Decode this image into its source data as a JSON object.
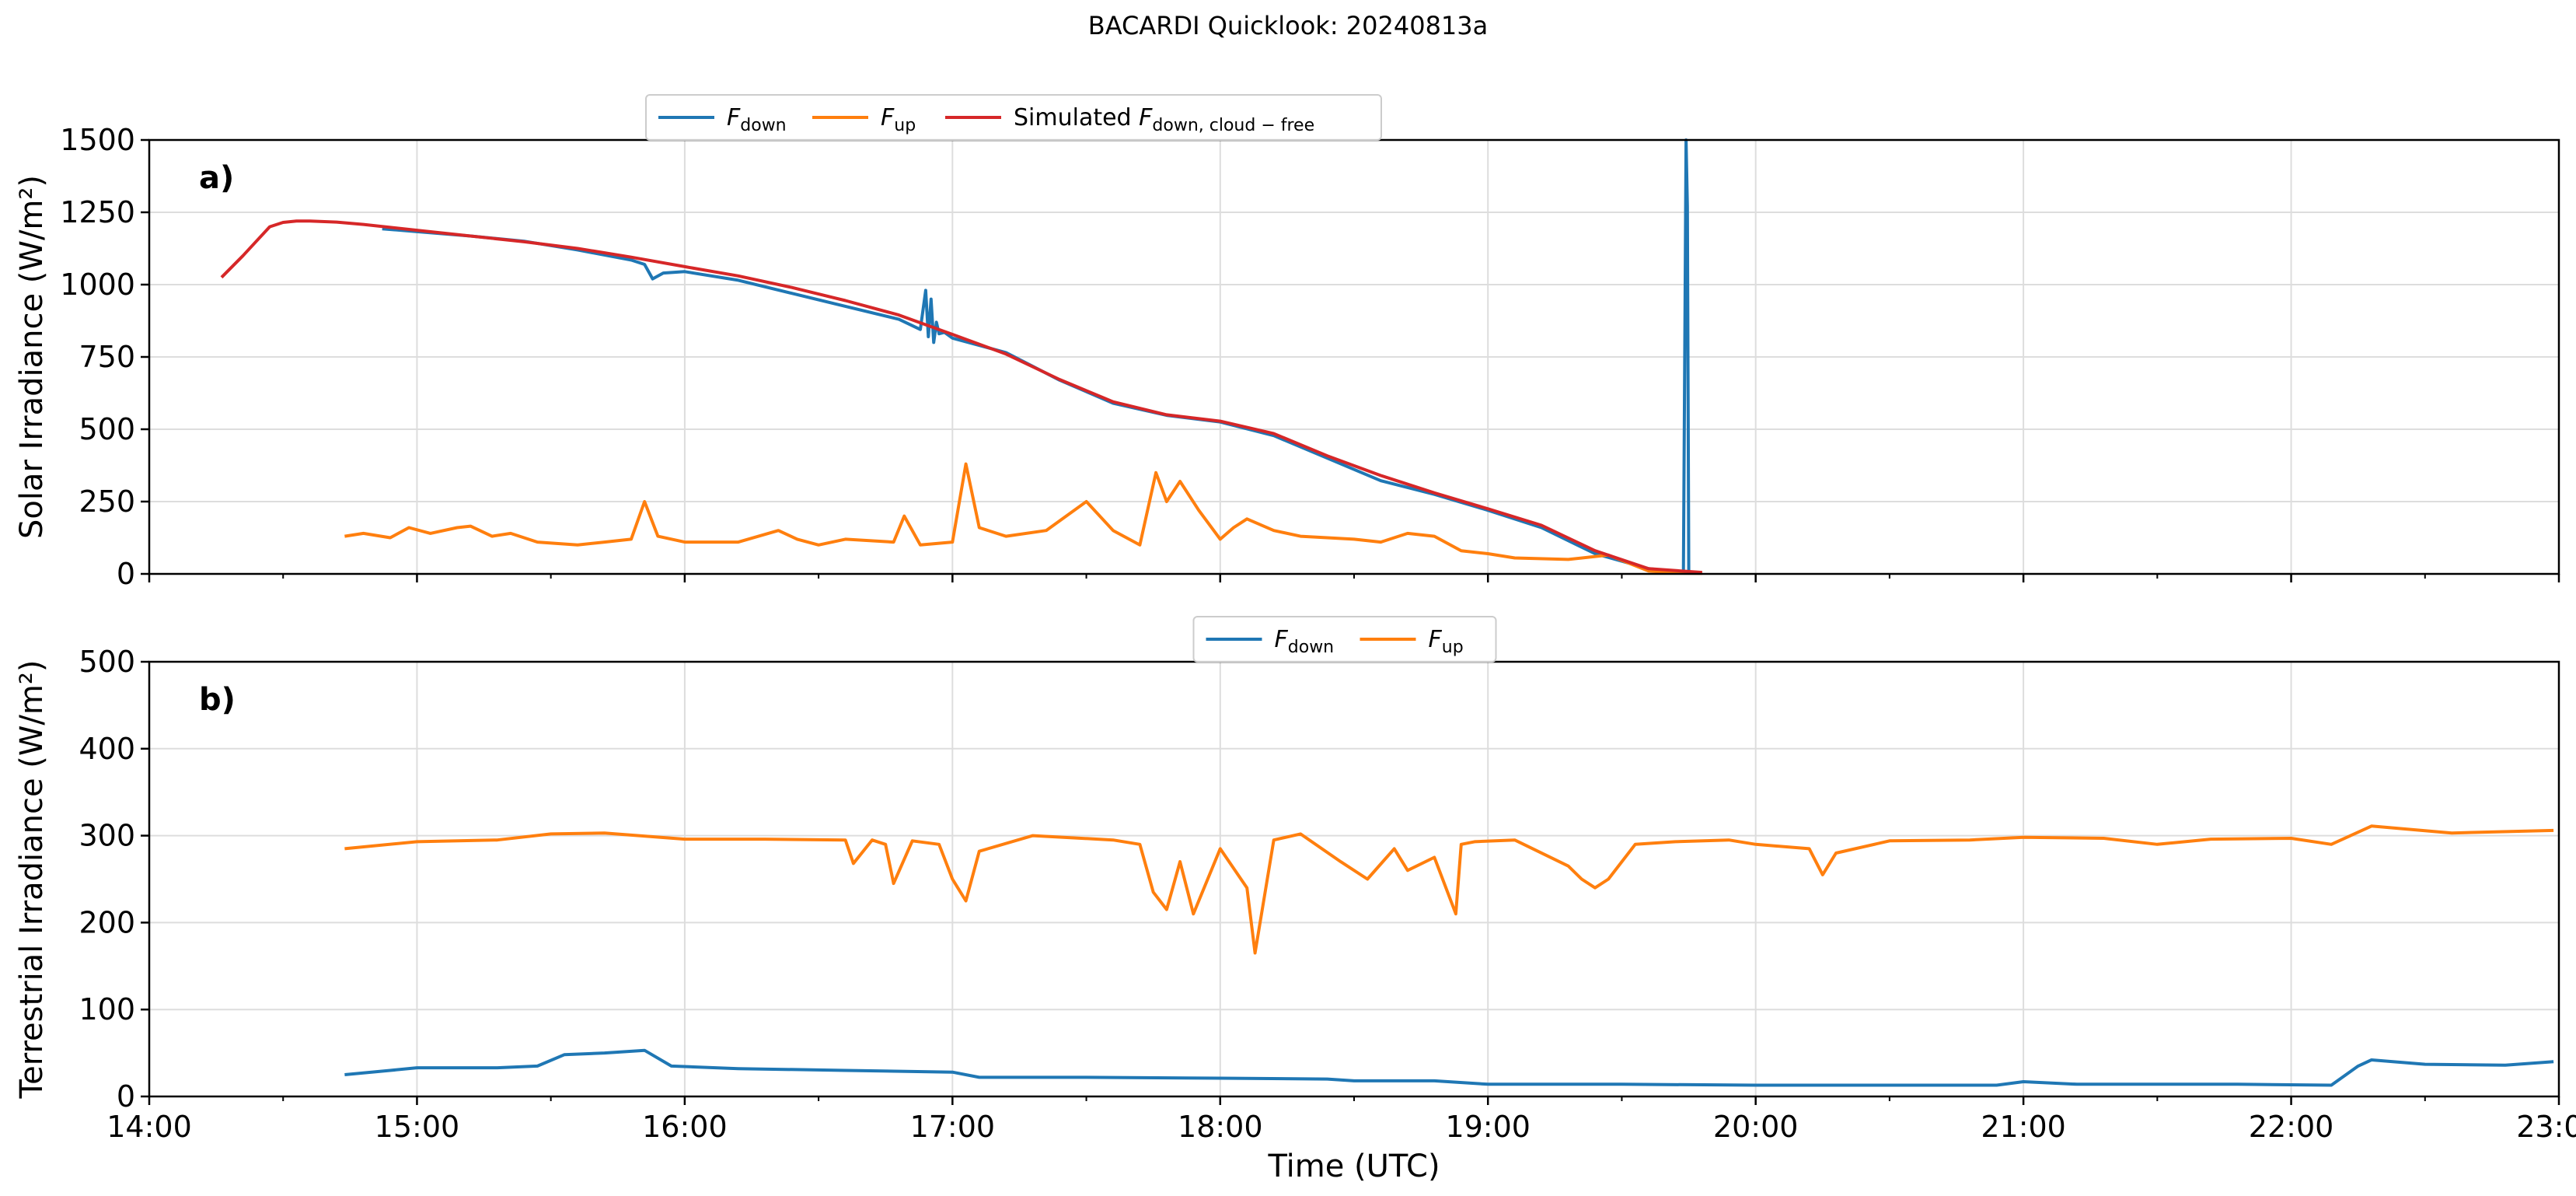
{
  "figure": {
    "title": "BACARDI Quicklook: 20240813a"
  },
  "colors": {
    "blue": "#1f77b4",
    "orange": "#ff7f0e",
    "red": "#d62728",
    "grid": "#dddddd"
  },
  "chart_data": [
    {
      "type": "line",
      "panel_label": "a)",
      "ylabel": "Solar Irradiance (W/m²)",
      "xlabel": "",
      "xlim": [
        14.0,
        23.0
      ],
      "ylim": [
        0,
        1500
      ],
      "yticks": [
        0,
        250,
        500,
        750,
        1000,
        1250,
        1500
      ],
      "grid": true,
      "legend": {
        "placement": "top-center",
        "columns": 3
      },
      "series": [
        {
          "name": "F_down",
          "legend_main": "F",
          "legend_sub": "down",
          "color": "#1f77b4",
          "x": [
            14.87,
            15.0,
            15.2,
            15.4,
            15.6,
            15.8,
            15.85,
            15.88,
            15.92,
            16.0,
            16.2,
            16.4,
            16.6,
            16.8,
            16.88,
            16.9,
            16.91,
            16.92,
            16.93,
            16.94,
            16.95,
            16.97,
            17.0,
            17.2,
            17.4,
            17.6,
            17.8,
            18.0,
            18.2,
            18.4,
            18.6,
            18.8,
            19.0,
            19.2,
            19.4,
            19.6,
            19.73,
            19.74,
            19.745,
            19.75
          ],
          "y": [
            1193,
            1183,
            1168,
            1150,
            1120,
            1085,
            1070,
            1020,
            1040,
            1045,
            1015,
            970,
            925,
            880,
            845,
            980,
            820,
            950,
            800,
            870,
            830,
            835,
            815,
            765,
            670,
            590,
            548,
            525,
            478,
            400,
            322,
            275,
            220,
            160,
            70,
            18,
            5,
            1500,
            1270,
            0
          ]
        },
        {
          "name": "F_up",
          "legend_main": "F",
          "legend_sub": "up",
          "color": "#ff7f0e",
          "x": [
            14.73,
            14.8,
            14.9,
            14.97,
            15.05,
            15.15,
            15.2,
            15.28,
            15.35,
            15.45,
            15.6,
            15.7,
            15.8,
            15.85,
            15.9,
            16.0,
            16.2,
            16.35,
            16.42,
            16.5,
            16.6,
            16.78,
            16.82,
            16.88,
            17.0,
            17.05,
            17.1,
            17.2,
            17.35,
            17.5,
            17.6,
            17.7,
            17.76,
            17.8,
            17.85,
            17.92,
            18.0,
            18.05,
            18.1,
            18.2,
            18.3,
            18.5,
            18.6,
            18.7,
            18.8,
            18.9,
            19.0,
            19.1,
            19.3,
            19.45,
            19.6,
            19.7,
            19.8
          ],
          "y": [
            130,
            140,
            125,
            160,
            140,
            160,
            165,
            130,
            140,
            110,
            100,
            110,
            120,
            250,
            130,
            110,
            110,
            150,
            120,
            100,
            120,
            110,
            200,
            100,
            110,
            380,
            160,
            130,
            150,
            250,
            150,
            100,
            350,
            250,
            320,
            220,
            120,
            160,
            190,
            150,
            130,
            120,
            110,
            140,
            130,
            80,
            70,
            55,
            50,
            65,
            10,
            3,
            2
          ]
        },
        {
          "name": "Simulated F_down,cloud-free",
          "legend_prefix": "Simulated ",
          "legend_main": "F",
          "legend_sub": "down, cloud − free",
          "color": "#d62728",
          "x": [
            14.27,
            14.35,
            14.4,
            14.45,
            14.5,
            14.55,
            14.6,
            14.7,
            14.8,
            15.0,
            15.2,
            15.4,
            15.6,
            15.8,
            16.0,
            16.2,
            16.4,
            16.6,
            16.8,
            17.0,
            17.2,
            17.4,
            17.6,
            17.8,
            18.0,
            18.2,
            18.4,
            18.6,
            18.8,
            19.0,
            19.2,
            19.4,
            19.6,
            19.8
          ],
          "y": [
            1025,
            1100,
            1150,
            1200,
            1215,
            1220,
            1220,
            1216,
            1208,
            1188,
            1168,
            1148,
            1125,
            1095,
            1062,
            1030,
            990,
            945,
            895,
            828,
            760,
            672,
            595,
            550,
            528,
            485,
            408,
            340,
            280,
            225,
            168,
            80,
            18,
            5
          ]
        }
      ]
    },
    {
      "type": "line",
      "panel_label": "b)",
      "ylabel": "Terrestrial Irradiance (W/m²)",
      "xlabel": "Time (UTC)",
      "xlim": [
        14.0,
        23.0
      ],
      "ylim": [
        0,
        500
      ],
      "yticks": [
        0,
        100,
        200,
        300,
        400,
        500
      ],
      "xticks": [
        14,
        15,
        16,
        17,
        18,
        19,
        20,
        21,
        22,
        23
      ],
      "xtick_labels": [
        "14:00",
        "15:00",
        "16:00",
        "17:00",
        "18:00",
        "19:00",
        "20:00",
        "21:00",
        "22:00",
        "23:00"
      ],
      "grid": true,
      "legend": {
        "placement": "top-center",
        "columns": 2
      },
      "series": [
        {
          "name": "F_down",
          "legend_main": "F",
          "legend_sub": "down",
          "color": "#1f77b4",
          "x": [
            14.73,
            14.9,
            15.0,
            15.3,
            15.45,
            15.55,
            15.7,
            15.85,
            15.95,
            16.2,
            16.6,
            17.0,
            17.1,
            17.5,
            18.0,
            18.4,
            18.5,
            18.8,
            19.0,
            19.5,
            20.0,
            20.5,
            20.9,
            21.0,
            21.2,
            21.8,
            22.15,
            22.25,
            22.3,
            22.5,
            22.8,
            22.98
          ],
          "y": [
            25,
            30,
            33,
            33,
            35,
            48,
            50,
            53,
            35,
            32,
            30,
            28,
            22,
            22,
            21,
            20,
            18,
            18,
            14,
            14,
            13,
            13,
            13,
            17,
            14,
            14,
            13,
            35,
            42,
            37,
            36,
            40
          ]
        },
        {
          "name": "F_up",
          "legend_main": "F",
          "legend_sub": "up",
          "color": "#ff7f0e",
          "x": [
            14.73,
            15.0,
            15.3,
            15.5,
            15.7,
            16.0,
            16.3,
            16.6,
            16.63,
            16.7,
            16.75,
            16.78,
            16.85,
            16.95,
            17.0,
            17.05,
            17.1,
            17.3,
            17.6,
            17.7,
            17.75,
            17.8,
            17.85,
            17.9,
            18.0,
            18.1,
            18.13,
            18.2,
            18.3,
            18.45,
            18.55,
            18.65,
            18.7,
            18.8,
            18.88,
            18.9,
            18.95,
            19.1,
            19.3,
            19.35,
            19.4,
            19.45,
            19.55,
            19.7,
            19.9,
            20.0,
            20.2,
            20.25,
            20.3,
            20.5,
            20.8,
            21.0,
            21.3,
            21.5,
            21.7,
            22.0,
            22.15,
            22.3,
            22.6,
            22.98
          ],
          "y": [
            285,
            293,
            295,
            302,
            303,
            296,
            296,
            295,
            268,
            295,
            290,
            245,
            294,
            290,
            250,
            225,
            282,
            300,
            295,
            290,
            235,
            215,
            270,
            210,
            285,
            240,
            165,
            295,
            302,
            270,
            250,
            285,
            260,
            275,
            210,
            290,
            293,
            295,
            265,
            250,
            240,
            250,
            290,
            293,
            295,
            290,
            285,
            255,
            280,
            294,
            295,
            298,
            297,
            290,
            296,
            297,
            290,
            311,
            303,
            306
          ]
        }
      ]
    }
  ]
}
